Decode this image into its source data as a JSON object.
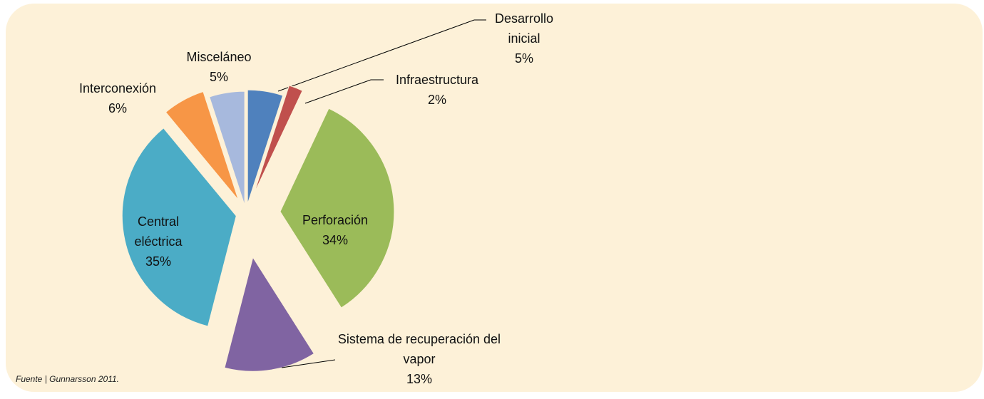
{
  "chart_data": {
    "type": "pie",
    "categories": [
      "Desarrollo inicial",
      "Infraestructura",
      "Perforación",
      "Sistema de recuperación del vapor",
      "Central eléctrica",
      "Interconexión",
      "Misceláneo"
    ],
    "values": [
      5,
      2,
      34,
      13,
      35,
      6,
      5
    ],
    "value_labels": [
      "5%",
      "2%",
      "34%",
      "13%",
      "35%",
      "6%",
      "5%"
    ],
    "colors": [
      "#4f81bd",
      "#c0504d",
      "#9bbb59",
      "#8064a2",
      "#4bacc6",
      "#f79646",
      "#a7b9dd"
    ],
    "source": "Fuente | Gunnarsson 2011."
  }
}
